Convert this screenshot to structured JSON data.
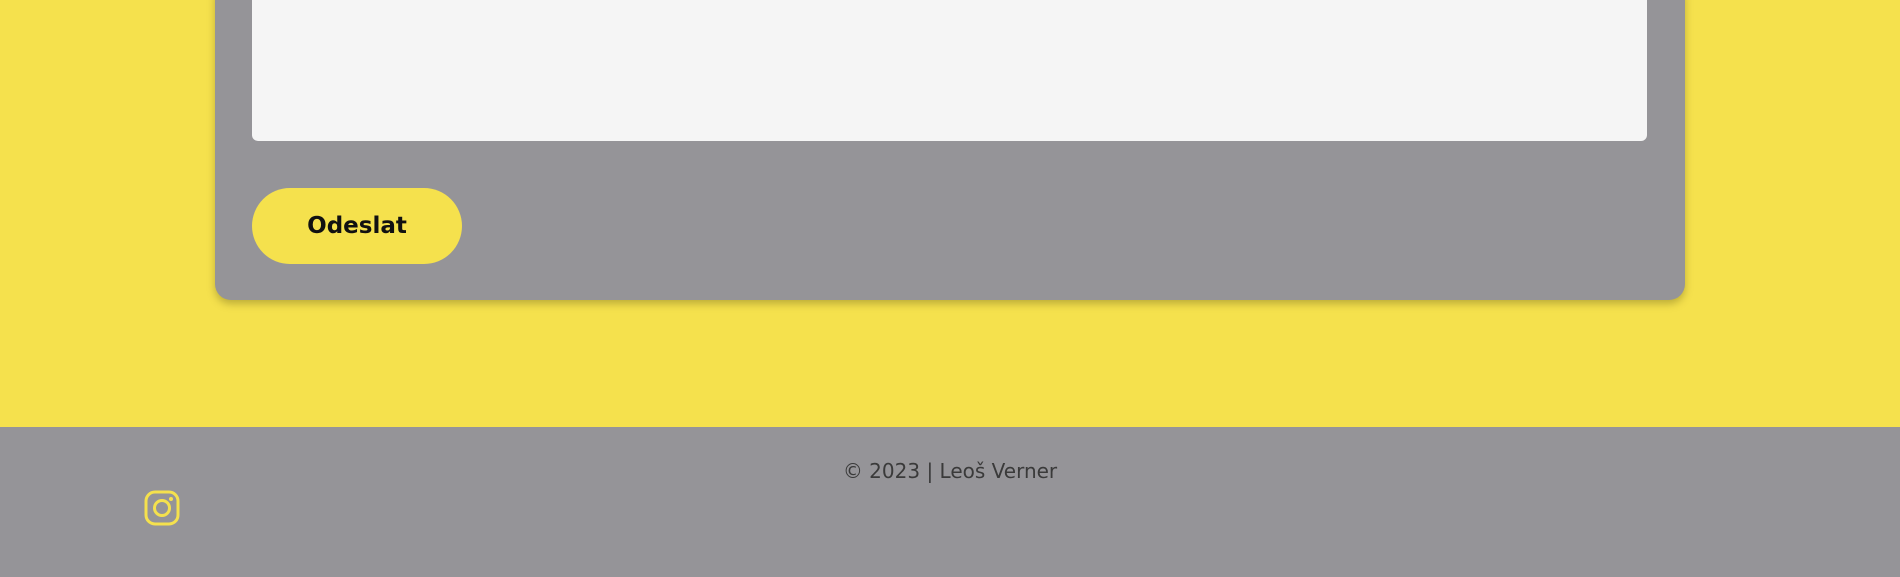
{
  "contact_form": {
    "message_value": "",
    "submit_label": "Odeslat"
  },
  "footer": {
    "copyright": "© 2023 | Leoš Verner",
    "social": {
      "icon": "instagram-icon"
    }
  },
  "colors": {
    "accent": "#F5E14D",
    "surface": "#959498",
    "field": "#F5F5F5",
    "text_dark": "#111111",
    "text_footer": "#3a3a3a"
  }
}
